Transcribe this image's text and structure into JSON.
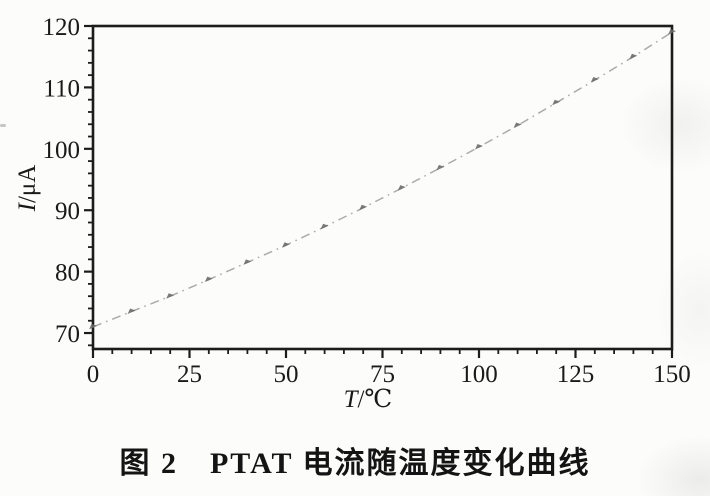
{
  "figure": {
    "caption": "图 2　PTAT 电流随温度变化曲线"
  },
  "chart_data": {
    "type": "line",
    "title": "",
    "series_name": "PTAT current vs temperature",
    "xlabel_var": "T",
    "xlabel_unit": "/℃",
    "ylabel_var": "I",
    "ylabel_unit": "/μA",
    "x": [
      0,
      10,
      20,
      30,
      40,
      50,
      60,
      70,
      80,
      90,
      100,
      110,
      120,
      130,
      140,
      150
    ],
    "y": [
      71.0,
      73.5,
      76.0,
      78.7,
      81.5,
      84.3,
      87.3,
      90.4,
      93.6,
      96.9,
      100.3,
      103.8,
      107.5,
      111.2,
      115.0,
      119.0
    ],
    "xlim": [
      0,
      150
    ],
    "ylim": [
      67.4,
      120
    ],
    "x_major_ticks": [
      0,
      25,
      50,
      75,
      100,
      125,
      150
    ],
    "x_tick_labels": [
      "0",
      "25",
      "50",
      "75",
      "100",
      "125",
      "150"
    ],
    "x_minor_step": 5,
    "y_major_ticks": [
      70,
      80,
      90,
      100,
      110,
      120
    ],
    "y_tick_labels": [
      "70",
      "80",
      "90",
      "100",
      "110",
      "120"
    ],
    "y_minor_step": 2,
    "grid": false,
    "legend": "none",
    "line_style": "dash-dot",
    "line_color": "#a6a6a2",
    "marker": "triangle",
    "marker_color": "#6b6b6b",
    "axis_color": "#1c1c1c"
  }
}
